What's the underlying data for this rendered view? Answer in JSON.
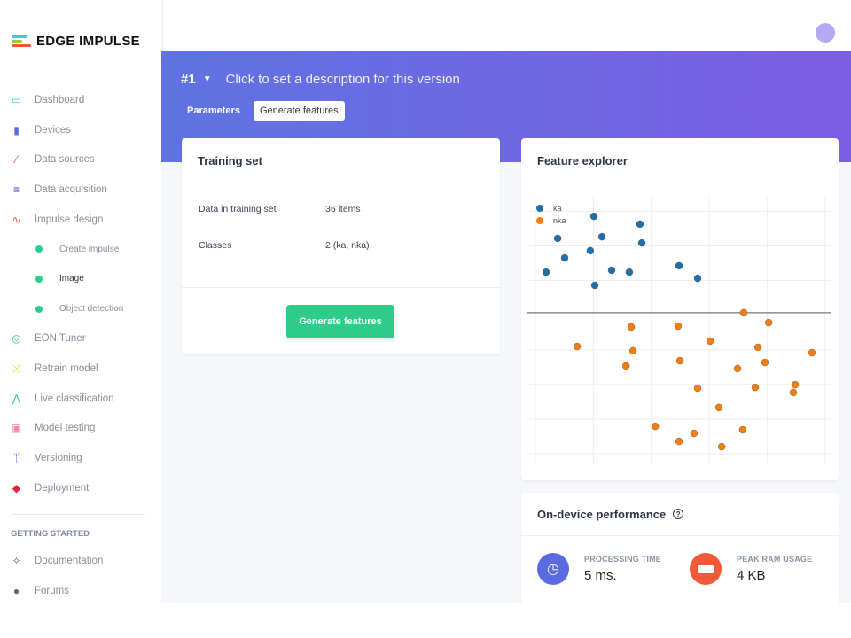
{
  "brand": {
    "name": "EDGE IMPULSE"
  },
  "sidebar": {
    "items": [
      {
        "label": "Dashboard",
        "icon": "monitor-icon",
        "color": "#3fc6e0"
      },
      {
        "label": "Devices",
        "icon": "chip-icon",
        "color": "#5a6be0"
      },
      {
        "label": "Data sources",
        "icon": "wand-icon",
        "color": "#ee3b62"
      },
      {
        "label": "Data acquisition",
        "icon": "database-icon",
        "color": "#5b1fb5"
      },
      {
        "label": "Impulse design",
        "icon": "pulse-icon",
        "color": "#f0553a"
      },
      {
        "label": "Create impulse",
        "sub": true
      },
      {
        "label": "Image",
        "sub": true,
        "active": true
      },
      {
        "label": "Object detection",
        "sub": true
      },
      {
        "label": "EON Tuner",
        "icon": "compass-icon",
        "color": "#2ecc8a"
      },
      {
        "label": "Retrain model",
        "icon": "shuffle-icon",
        "color": "#f5c400"
      },
      {
        "label": "Live classification",
        "icon": "network-icon",
        "color": "#2ecc8a"
      },
      {
        "label": "Model testing",
        "icon": "clipboard-check-icon",
        "color": "#f48aa0"
      },
      {
        "label": "Versioning",
        "icon": "branch-icon",
        "color": "#5a6be0"
      },
      {
        "label": "Deployment",
        "icon": "cube-icon",
        "color": "#e8213f"
      }
    ],
    "section": "GETTING STARTED",
    "help_items": [
      {
        "label": "Documentation",
        "icon": "rocket-icon"
      },
      {
        "label": "Forums",
        "icon": "chat-icon"
      }
    ]
  },
  "version": {
    "number": "#1",
    "description": "Click to set a description for this version"
  },
  "tabs": [
    {
      "label": "Parameters"
    },
    {
      "label": "Generate features"
    }
  ],
  "training_set": {
    "title": "Training set",
    "rows": [
      {
        "key": "Data in training set",
        "value": "36 items"
      },
      {
        "key": "Classes",
        "value": "2 (ka, nka)"
      }
    ],
    "button": "Generate features"
  },
  "feature_explorer": {
    "title": "Feature explorer"
  },
  "performance": {
    "title": "On-device performance",
    "metrics": [
      {
        "label": "PROCESSING TIME",
        "value": "5 ms.",
        "color": "#5a6be0"
      },
      {
        "label": "PEAK RAM USAGE",
        "value": "4 KB",
        "color": "#f05a3a"
      }
    ]
  },
  "chart_data": {
    "type": "scatter",
    "title": "",
    "xlabel": "",
    "ylabel": "",
    "xlim": [
      0,
      100
    ],
    "ylim": [
      0,
      100
    ],
    "grid": true,
    "legend": "top-left",
    "divider_y": 56.8,
    "series": [
      {
        "name": "ka",
        "color": "#1f6fa8",
        "points": [
          [
            6.4,
            71.9
          ],
          [
            10.2,
            84.5
          ],
          [
            12.5,
            77.2
          ],
          [
            22.1,
            92.7
          ],
          [
            24.7,
            85.1
          ],
          [
            20.9,
            79.9
          ],
          [
            27.9,
            72.6
          ],
          [
            33.7,
            71.9
          ],
          [
            37.2,
            89.8
          ],
          [
            37.8,
            82.8
          ],
          [
            22.4,
            67.0
          ],
          [
            50.0,
            74.3
          ],
          [
            56.1,
            69.6
          ]
        ]
      },
      {
        "name": "nka",
        "color": "#f57c0f",
        "points": [
          [
            71.2,
            56.8
          ],
          [
            79.4,
            53.1
          ],
          [
            34.3,
            51.5
          ],
          [
            49.7,
            51.8
          ],
          [
            16.6,
            44.2
          ],
          [
            34.9,
            42.6
          ],
          [
            60.2,
            46.2
          ],
          [
            50.3,
            38.9
          ],
          [
            75.9,
            43.9
          ],
          [
            32.6,
            37.0
          ],
          [
            69.2,
            36.0
          ],
          [
            78.2,
            38.3
          ],
          [
            93.6,
            41.9
          ],
          [
            56.1,
            28.7
          ],
          [
            75.0,
            29.0
          ],
          [
            88.1,
            30.0
          ],
          [
            87.5,
            27.1
          ],
          [
            63.1,
            21.5
          ],
          [
            42.2,
            14.5
          ],
          [
            54.9,
            11.9
          ],
          [
            50.0,
            8.9
          ],
          [
            70.9,
            13.2
          ],
          [
            64.0,
            6.9
          ]
        ]
      }
    ]
  }
}
